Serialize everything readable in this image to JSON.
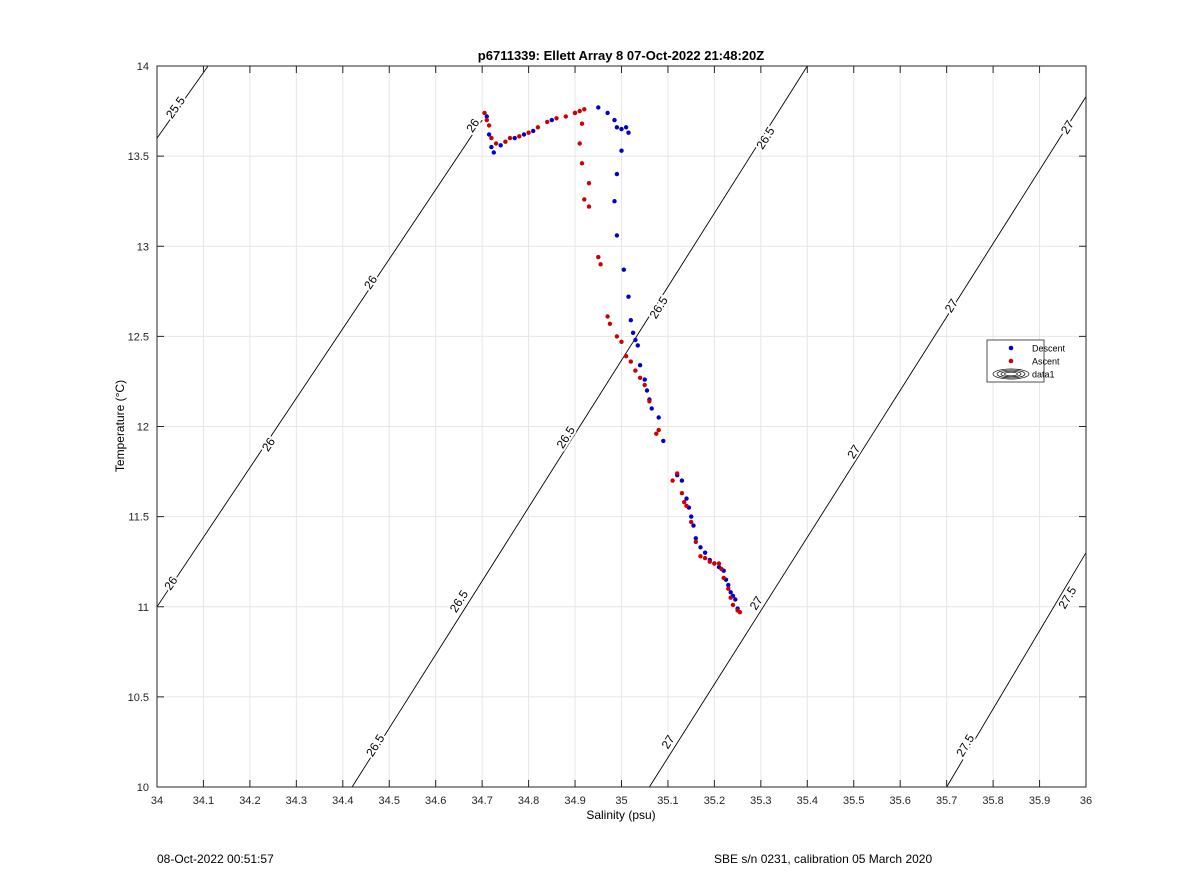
{
  "chart_data": {
    "type": "scatter",
    "title": "p6711339: Ellett Array 8 07-Oct-2022 21:48:20Z",
    "xlabel": "Salinity (psu)",
    "ylabel": "Temperature (°C)",
    "xlim": [
      34,
      36
    ],
    "ylim": [
      10,
      14
    ],
    "grid": true,
    "legend_position": "right",
    "xticks": [
      "34",
      "34.1",
      "34.2",
      "34.3",
      "34.4",
      "34.5",
      "34.6",
      "34.7",
      "34.8",
      "34.9",
      "35",
      "35.1",
      "35.2",
      "35.3",
      "35.4",
      "35.5",
      "35.6",
      "35.7",
      "35.8",
      "35.9",
      "36"
    ],
    "yticks": [
      "10",
      "10.5",
      "11",
      "11.5",
      "12",
      "12.5",
      "13",
      "13.5",
      "14"
    ],
    "contours": [
      {
        "label": "25.5",
        "endpoints": [
          [
            34,
            13.6
          ],
          [
            34.11,
            14
          ]
        ],
        "label_positions": [
          [
            34.04,
            13.77
          ]
        ]
      },
      {
        "label": "26",
        "endpoints": [
          [
            34,
            11.0
          ],
          [
            34.7,
            13.7
          ]
        ],
        "label_positions": [
          [
            34.68,
            13.67
          ],
          [
            34.46,
            12.8
          ],
          [
            34.24,
            11.9
          ],
          [
            34.03,
            11.13
          ]
        ]
      },
      {
        "label": "26.5",
        "endpoints": [
          [
            34.42,
            10.0
          ],
          [
            35.4,
            14.0
          ]
        ],
        "label_positions": [
          [
            35.31,
            13.6
          ],
          [
            35.08,
            12.66
          ],
          [
            34.88,
            11.94
          ],
          [
            34.65,
            11.03
          ],
          [
            34.47,
            10.23
          ]
        ]
      },
      {
        "label": "27",
        "endpoints": [
          [
            35.06,
            10.0
          ],
          [
            36,
            13.83
          ]
        ],
        "label_positions": [
          [
            35.96,
            13.66
          ],
          [
            35.71,
            12.67
          ],
          [
            35.5,
            11.86
          ],
          [
            35.29,
            11.02
          ],
          [
            35.1,
            10.25
          ]
        ]
      },
      {
        "label": "27.5",
        "endpoints": [
          [
            35.7,
            10.0
          ],
          [
            36,
            11.3
          ]
        ],
        "label_positions": [
          [
            35.96,
            11.05
          ],
          [
            35.74,
            10.23
          ]
        ]
      }
    ],
    "series": [
      {
        "name": "Descent",
        "color": "#0000cc",
        "points": [
          [
            34.71,
            13.72
          ],
          [
            34.715,
            13.62
          ],
          [
            34.72,
            13.55
          ],
          [
            34.725,
            13.52
          ],
          [
            34.74,
            13.56
          ],
          [
            34.77,
            13.6
          ],
          [
            34.79,
            13.62
          ],
          [
            34.81,
            13.64
          ],
          [
            34.85,
            13.7
          ],
          [
            34.9,
            13.74
          ],
          [
            34.95,
            13.77
          ],
          [
            34.97,
            13.74
          ],
          [
            34.985,
            13.7
          ],
          [
            34.99,
            13.66
          ],
          [
            35.0,
            13.65
          ],
          [
            35.01,
            13.66
          ],
          [
            35.015,
            13.63
          ],
          [
            35.0,
            13.53
          ],
          [
            34.99,
            13.4
          ],
          [
            34.985,
            13.25
          ],
          [
            34.99,
            13.06
          ],
          [
            35.005,
            12.87
          ],
          [
            35.015,
            12.72
          ],
          [
            35.02,
            12.59
          ],
          [
            35.025,
            12.52
          ],
          [
            35.03,
            12.48
          ],
          [
            35.035,
            12.45
          ],
          [
            35.04,
            12.34
          ],
          [
            35.05,
            12.26
          ],
          [
            35.055,
            12.2
          ],
          [
            35.06,
            12.15
          ],
          [
            35.065,
            12.1
          ],
          [
            35.08,
            12.05
          ],
          [
            35.09,
            11.92
          ],
          [
            35.12,
            11.73
          ],
          [
            35.13,
            11.7
          ],
          [
            35.14,
            11.6
          ],
          [
            35.145,
            11.55
          ],
          [
            35.15,
            11.5
          ],
          [
            35.155,
            11.45
          ],
          [
            35.16,
            11.38
          ],
          [
            35.17,
            11.33
          ],
          [
            35.18,
            11.3
          ],
          [
            35.19,
            11.26
          ],
          [
            35.2,
            11.24
          ],
          [
            35.21,
            11.22
          ],
          [
            35.22,
            11.2
          ],
          [
            35.225,
            11.15
          ],
          [
            35.23,
            11.12
          ],
          [
            35.235,
            11.08
          ],
          [
            35.24,
            11.06
          ],
          [
            35.245,
            11.04
          ],
          [
            35.25,
            10.99
          ]
        ]
      },
      {
        "name": "Ascent",
        "color": "#cc0000",
        "points": [
          [
            34.705,
            13.74
          ],
          [
            34.71,
            13.7
          ],
          [
            34.715,
            13.67
          ],
          [
            34.72,
            13.6
          ],
          [
            34.73,
            13.57
          ],
          [
            34.75,
            13.58
          ],
          [
            34.76,
            13.6
          ],
          [
            34.78,
            13.61
          ],
          [
            34.8,
            13.63
          ],
          [
            34.82,
            13.66
          ],
          [
            34.84,
            13.69
          ],
          [
            34.86,
            13.71
          ],
          [
            34.88,
            13.72
          ],
          [
            34.9,
            13.74
          ],
          [
            34.91,
            13.75
          ],
          [
            34.92,
            13.76
          ],
          [
            34.915,
            13.68
          ],
          [
            34.91,
            13.57
          ],
          [
            34.915,
            13.46
          ],
          [
            34.93,
            13.35
          ],
          [
            34.92,
            13.26
          ],
          [
            34.93,
            13.22
          ],
          [
            34.95,
            12.94
          ],
          [
            34.955,
            12.9
          ],
          [
            34.97,
            12.61
          ],
          [
            34.975,
            12.57
          ],
          [
            34.99,
            12.5
          ],
          [
            35.0,
            12.47
          ],
          [
            35.01,
            12.39
          ],
          [
            35.02,
            12.36
          ],
          [
            35.03,
            12.31
          ],
          [
            35.04,
            12.27
          ],
          [
            35.05,
            12.23
          ],
          [
            35.06,
            12.14
          ],
          [
            35.08,
            11.98
          ],
          [
            35.075,
            11.96
          ],
          [
            35.11,
            11.7
          ],
          [
            35.12,
            11.74
          ],
          [
            35.13,
            11.63
          ],
          [
            35.135,
            11.58
          ],
          [
            35.14,
            11.56
          ],
          [
            35.15,
            11.47
          ],
          [
            35.16,
            11.36
          ],
          [
            35.17,
            11.28
          ],
          [
            35.18,
            11.27
          ],
          [
            35.19,
            11.25
          ],
          [
            35.2,
            11.24
          ],
          [
            35.21,
            11.24
          ],
          [
            35.215,
            11.21
          ],
          [
            35.22,
            11.16
          ],
          [
            35.23,
            11.1
          ],
          [
            35.235,
            11.05
          ],
          [
            35.24,
            11.01
          ],
          [
            35.25,
            10.98
          ],
          [
            35.255,
            10.97
          ]
        ]
      }
    ],
    "legend": [
      {
        "label": "Descent",
        "marker": "dot",
        "color": "#0000cc"
      },
      {
        "label": "Ascent",
        "marker": "dot",
        "color": "#cc0000"
      },
      {
        "label": "data1",
        "marker": "contour-icon",
        "color": "#000000"
      }
    ]
  },
  "footer": {
    "left": "08-Oct-2022 00:51:57",
    "right": "SBE s/n 0231, calibration 05 March 2020"
  }
}
